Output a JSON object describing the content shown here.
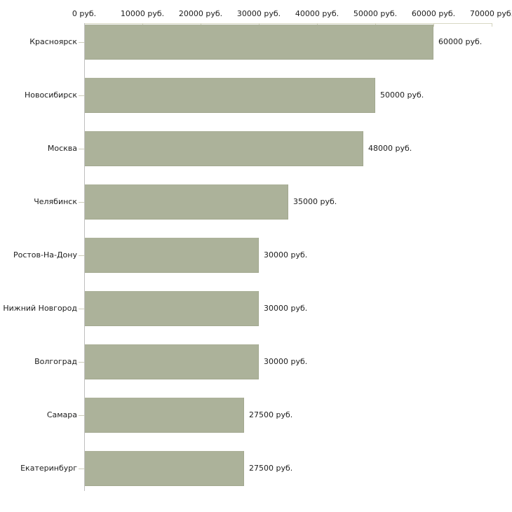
{
  "chart_data": {
    "type": "bar",
    "orientation": "horizontal",
    "title": "",
    "categories": [
      "Красноярск",
      "Новосибирск",
      "Москва",
      "Челябинск",
      "Ростов-На-Дону",
      "Нижний Новгород",
      "Волгоград",
      "Самара",
      "Екатеринбург"
    ],
    "values": [
      60000,
      50000,
      48000,
      35000,
      30000,
      30000,
      30000,
      27500,
      27500
    ],
    "value_labels": [
      "60000 руб.",
      "50000 руб.",
      "48000 руб.",
      "35000 руб.",
      "30000 руб.",
      "30000 руб.",
      "30000 руб.",
      "27500 руб.",
      "27500 руб."
    ],
    "unit": "руб.",
    "x_axis": {
      "position": "top",
      "min": 0,
      "max": 70000,
      "ticks": [
        0,
        10000,
        20000,
        30000,
        40000,
        50000,
        60000,
        70000
      ],
      "tick_labels": [
        "0 руб.",
        "10000 руб.",
        "20000 руб.",
        "30000 руб.",
        "40000 руб.",
        "50000 руб.",
        "60000 руб.",
        "70000 руб."
      ]
    },
    "grid": false,
    "legend": null,
    "colors": {
      "bar_fill": "#acb29a",
      "bar_border": "#a2a88f",
      "x_axis_line": "#d8d8c4",
      "x_tick_mark": "#d2d2bc",
      "y_axis_line": "#bfbfbf",
      "category_tick": "#cdcdb9",
      "text": "#1c1c1c",
      "background": "#ffffff"
    }
  }
}
